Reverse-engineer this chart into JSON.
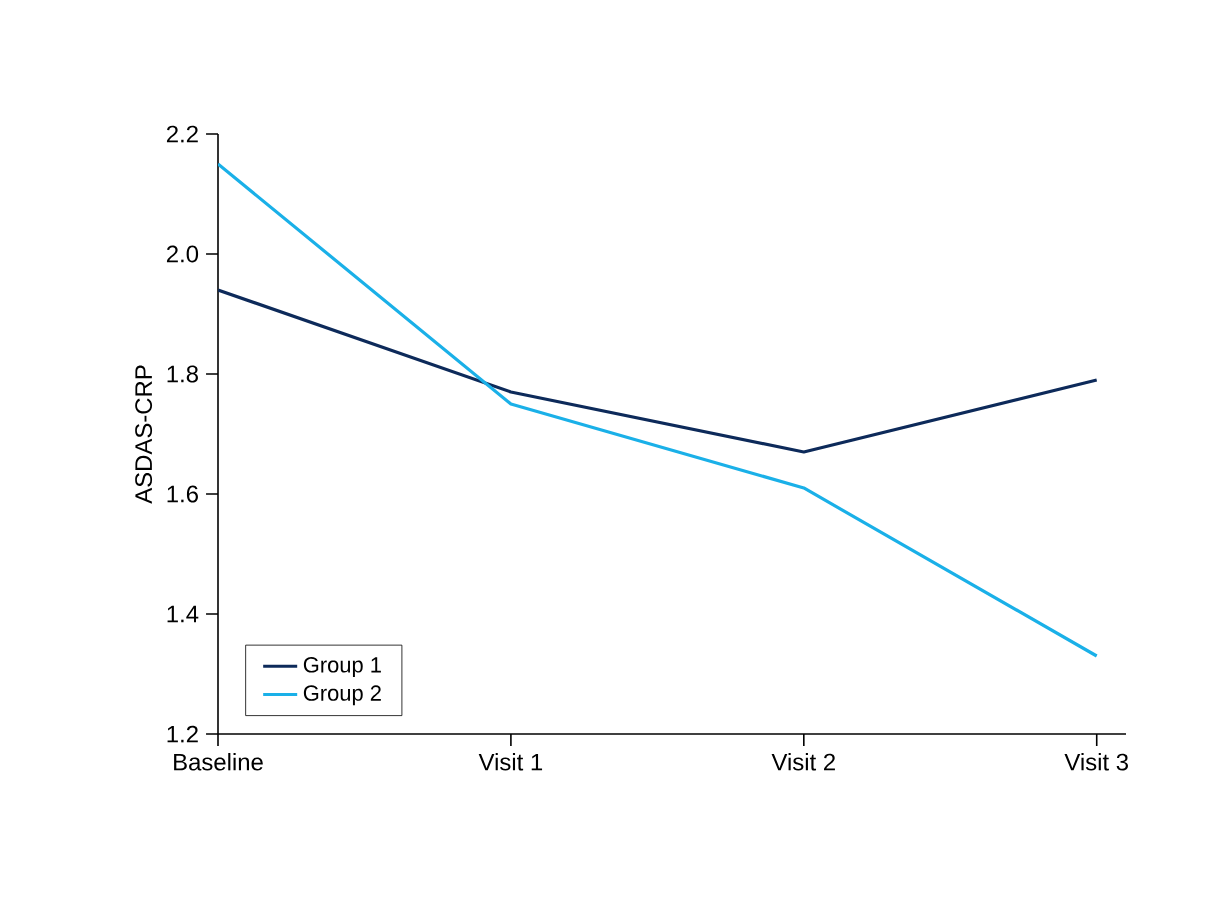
{
  "chart_data": {
    "type": "line",
    "ylabel": "ASDAS-CRP",
    "categories": [
      "Baseline",
      "Visit 1",
      "Visit 2",
      "Visit 3"
    ],
    "series": [
      {
        "name": "Group 1",
        "color": "#0d2a5a",
        "values": [
          1.94,
          1.77,
          1.67,
          1.79
        ]
      },
      {
        "name": "Group 2",
        "color": "#1ab0e8",
        "values": [
          2.15,
          1.75,
          1.61,
          1.33
        ]
      }
    ],
    "ylim": [
      1.2,
      2.2
    ],
    "yticks": [
      1.2,
      1.4,
      1.6,
      1.8,
      {
        "value": 2.0,
        "label": "2.0"
      },
      2.2
    ],
    "grid": false,
    "legend": "bottom left",
    "marker": "none",
    "line_style": "solid"
  }
}
